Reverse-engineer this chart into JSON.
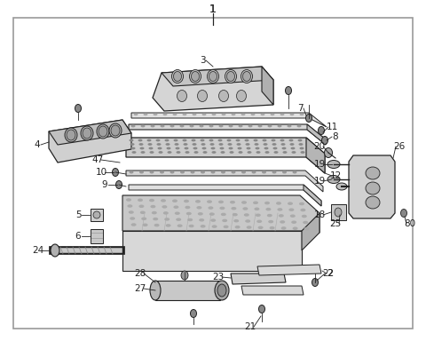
{
  "bg_color": "#ffffff",
  "border_color": "#999999",
  "line_color": "#222222",
  "fill_light": "#e8e8e8",
  "fill_mid": "#d0d0d0",
  "fill_dark": "#b8b8b8",
  "figsize": [
    4.8,
    3.84
  ],
  "dpi": 100,
  "label_fontsize": 7.5,
  "title_fontsize": 9
}
